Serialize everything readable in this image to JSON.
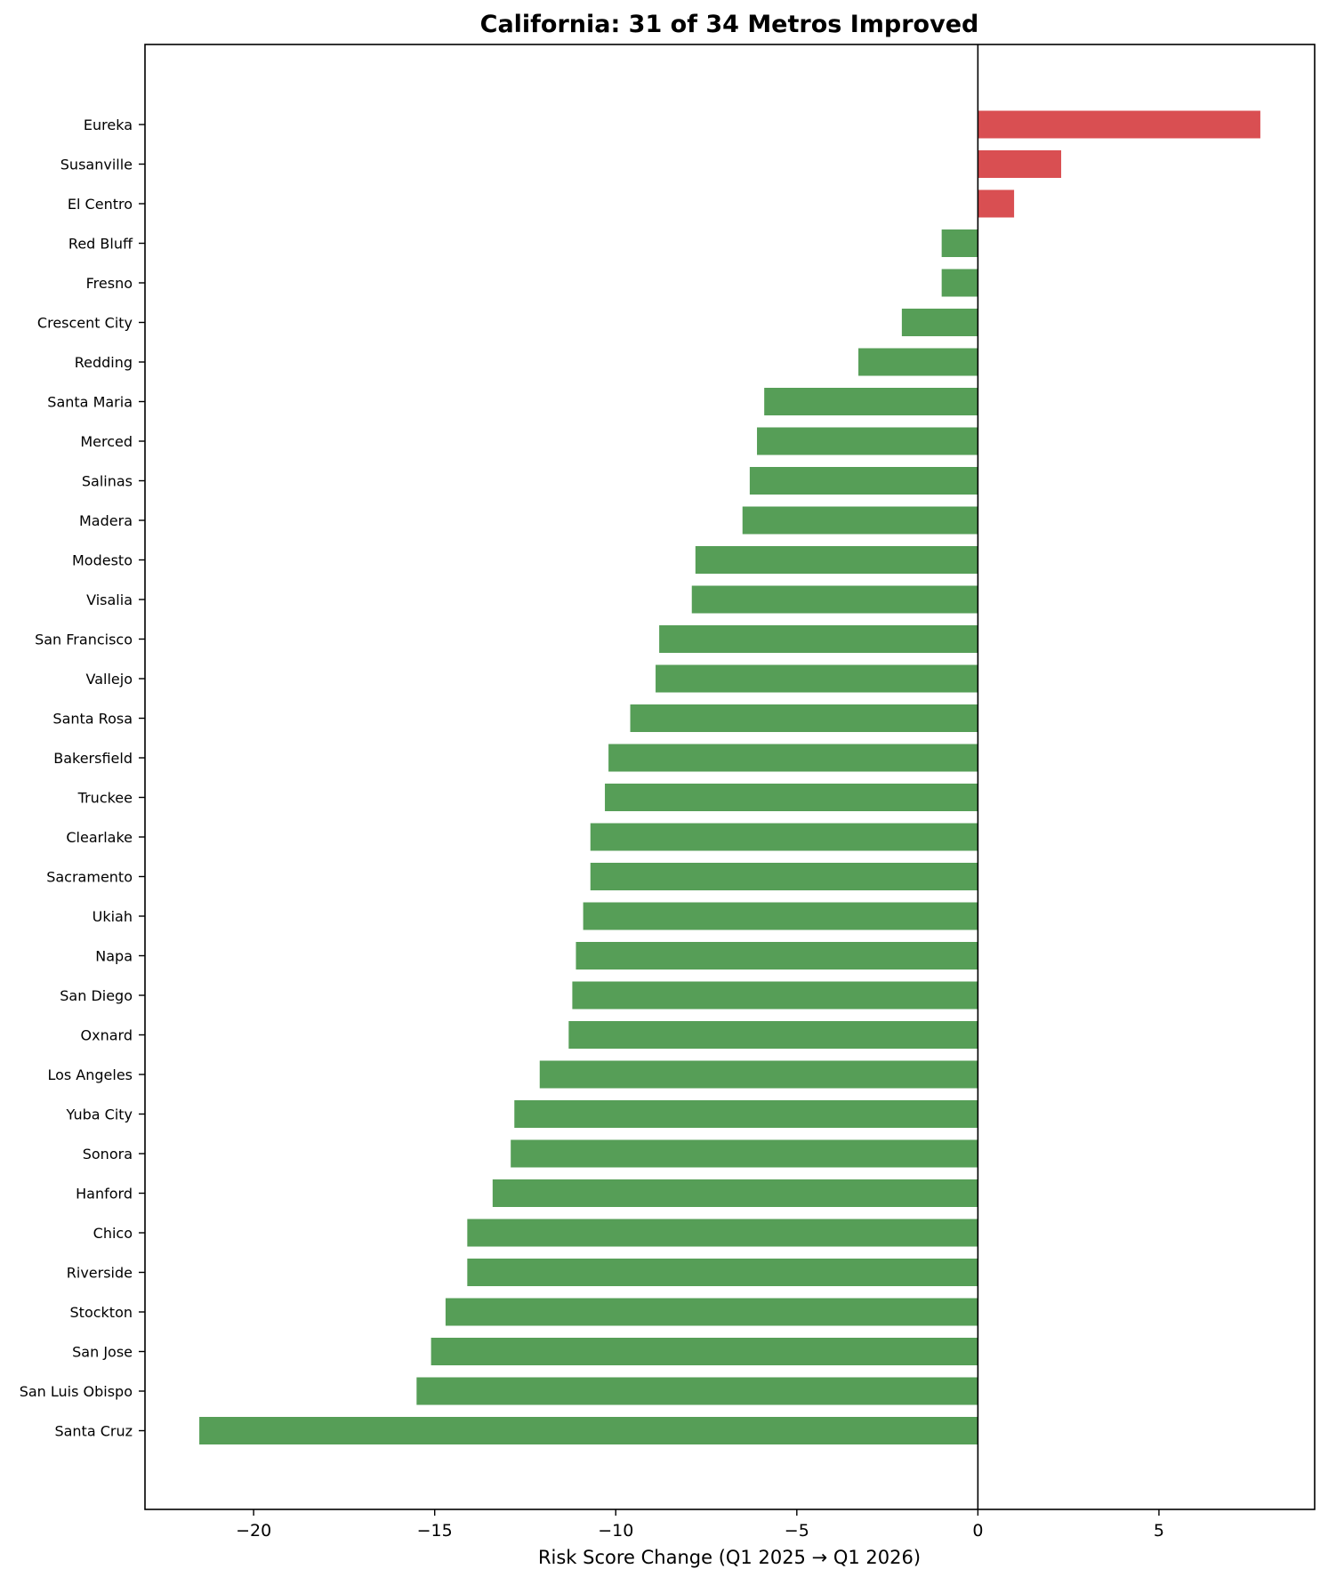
{
  "colors": {
    "positive": "#d94f52",
    "negative": "#569e57",
    "axis": "#000000",
    "background": "#ffffff"
  },
  "chart_data": {
    "type": "bar",
    "orientation": "horizontal",
    "title": "California: 31 of 34 Metros Improved",
    "xlabel": "Risk Score Change (Q1 2025 → Q1 2026)",
    "ylabel": "",
    "xlim": [
      -23,
      9.3
    ],
    "xticks": [
      -20,
      -15,
      -10,
      -5,
      0,
      5
    ],
    "xtick_labels": [
      "−20",
      "−15",
      "−10",
      "−5",
      "0",
      "5"
    ],
    "grid": false,
    "legend": false,
    "reference_line": 0,
    "categories": [
      "Eureka",
      "Susanville",
      "El Centro",
      "Red Bluff",
      "Fresno",
      "Crescent City",
      "Redding",
      "Santa Maria",
      "Merced",
      "Salinas",
      "Madera",
      "Modesto",
      "Visalia",
      "San Francisco",
      "Vallejo",
      "Santa Rosa",
      "Bakersfield",
      "Truckee",
      "Clearlake",
      "Sacramento",
      "Ukiah",
      "Napa",
      "San Diego",
      "Oxnard",
      "Los Angeles",
      "Yuba City",
      "Sonora",
      "Hanford",
      "Chico",
      "Riverside",
      "Stockton",
      "San Jose",
      "San Luis Obispo",
      "Santa Cruz"
    ],
    "values": [
      7.8,
      2.3,
      1.0,
      -1.0,
      -1.0,
      -2.1,
      -3.3,
      -5.9,
      -6.1,
      -6.3,
      -6.5,
      -7.8,
      -7.9,
      -8.8,
      -8.9,
      -9.6,
      -10.2,
      -10.3,
      -10.7,
      -10.7,
      -10.9,
      -11.1,
      -11.2,
      -11.3,
      -12.1,
      -12.8,
      -12.9,
      -13.4,
      -14.1,
      -14.1,
      -14.7,
      -15.1,
      -15.5,
      -21.5
    ]
  }
}
